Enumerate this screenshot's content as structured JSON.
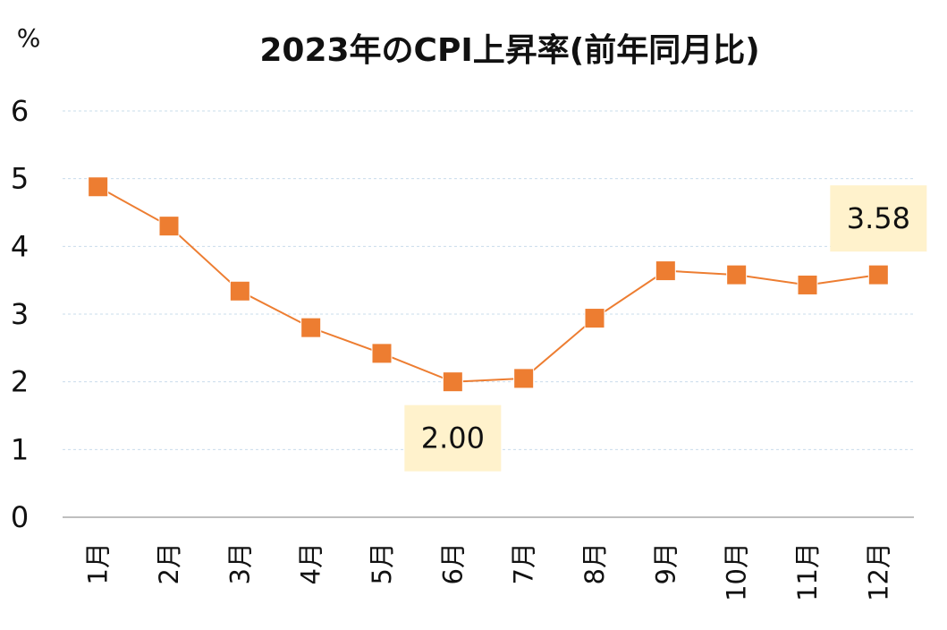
{
  "chart_data": {
    "type": "line",
    "title": "2023年のCPI上昇率(前年同月比)",
    "unit_label": "%",
    "categories": [
      "1月",
      "2月",
      "3月",
      "4月",
      "5月",
      "6月",
      "7月",
      "8月",
      "9月",
      "10月",
      "11月",
      "12月"
    ],
    "series": [
      {
        "values": [
          4.88,
          4.3,
          3.34,
          2.8,
          2.42,
          2.0,
          2.05,
          2.94,
          3.64,
          3.58,
          3.43,
          3.58
        ]
      }
    ],
    "ylim": [
      0,
      6
    ],
    "yticks": [
      0,
      1,
      2,
      3,
      4,
      5,
      6
    ],
    "grid": true,
    "legend": "none",
    "colors": {
      "line": "#ED7D31",
      "marker": "#ED7D31",
      "gridline": "#C9DCEB",
      "axis": "#BFBFBF",
      "callout_bg": "#FFF2CC"
    },
    "annotations": [
      {
        "category": "6月",
        "text": "2.00",
        "placement": "below"
      },
      {
        "category": "12月",
        "text": "3.58",
        "placement": "above"
      }
    ]
  }
}
